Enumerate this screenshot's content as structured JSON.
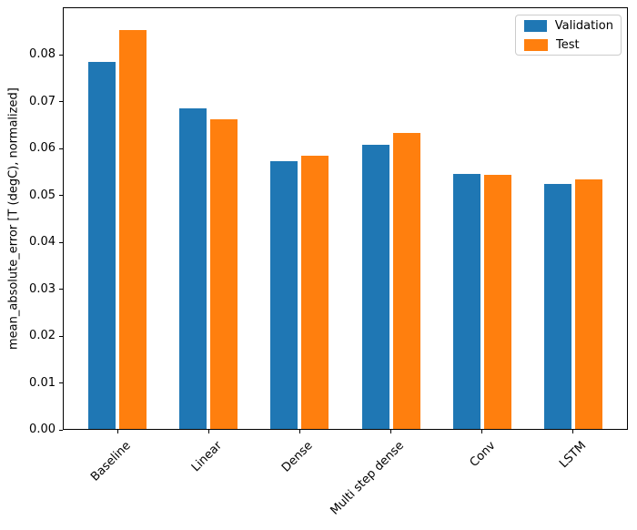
{
  "chart_data": {
    "type": "bar",
    "title": "",
    "xlabel": "",
    "ylabel": "mean_absolute_error [T (degC), normalized]",
    "categories": [
      "Baseline",
      "Linear",
      "Dense",
      "Multi step dense",
      "Conv",
      "LSTM"
    ],
    "series": [
      {
        "name": "Validation",
        "color": "#1f77b4",
        "values": [
          0.0785,
          0.0686,
          0.0573,
          0.0607,
          0.0545,
          0.0524
        ]
      },
      {
        "name": "Test",
        "color": "#ff7f0e",
        "values": [
          0.0852,
          0.0663,
          0.0584,
          0.0634,
          0.0543,
          0.0534
        ]
      }
    ],
    "ylim": [
      0,
      0.0901
    ],
    "xlim": [
      -0.6,
      5.6
    ],
    "ytick_values": [
      0.0,
      0.01,
      0.02,
      0.03,
      0.04,
      0.05,
      0.06,
      0.07,
      0.08
    ],
    "ytick_labels": [
      "0.00",
      "0.01",
      "0.02",
      "0.03",
      "0.04",
      "0.05",
      "0.06",
      "0.07",
      "0.08"
    ],
    "xtick_rotation_deg": 45,
    "bar_width": 0.3,
    "bar_offsets": [
      -0.17,
      0.17
    ],
    "grid": false,
    "legend": {
      "position": "upper right",
      "entries": [
        "Validation",
        "Test"
      ]
    },
    "axis_color": "#000000",
    "background_color": "#ffffff"
  }
}
